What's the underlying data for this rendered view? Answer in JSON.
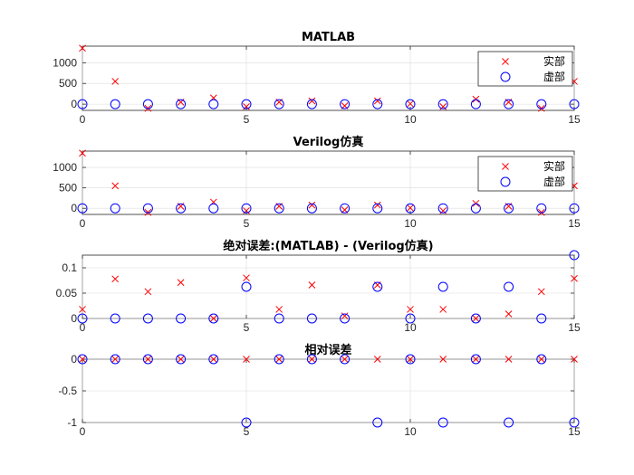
{
  "colors": {
    "real": "#ff0000",
    "imag": "#0000ff"
  },
  "chart_data": [
    {
      "type": "scatter",
      "title": "MATLAB",
      "xlim": [
        0,
        15
      ],
      "ylim": [
        -150,
        1400
      ],
      "xticks": [
        0,
        5,
        10,
        15
      ],
      "yticks": [
        0,
        500,
        1000
      ],
      "legend": [
        "实部",
        "虚部"
      ],
      "legend_location": "top-right",
      "grid": true,
      "series": [
        {
          "name": "实部",
          "marker": "x",
          "x": [
            0,
            1,
            2,
            3,
            4,
            5,
            6,
            7,
            8,
            9,
            10,
            11,
            12,
            13,
            14,
            15
          ],
          "y": [
            1350,
            550,
            -100,
            50,
            150,
            -60,
            50,
            80,
            -40,
            80,
            10,
            -60,
            120,
            50,
            -100,
            550
          ]
        },
        {
          "name": "虚部",
          "marker": "o",
          "x": [
            0,
            1,
            2,
            3,
            4,
            5,
            6,
            7,
            8,
            9,
            10,
            11,
            12,
            13,
            14,
            15
          ],
          "y": [
            0,
            0,
            0,
            0,
            0,
            0,
            0,
            0,
            0,
            0,
            0,
            0,
            0,
            0,
            0,
            0
          ]
        }
      ]
    },
    {
      "type": "scatter",
      "title": "Verilog仿真",
      "xlim": [
        0,
        15
      ],
      "ylim": [
        -150,
        1400
      ],
      "xticks": [
        0,
        5,
        10,
        15
      ],
      "yticks": [
        0,
        500,
        1000
      ],
      "legend": [
        "实部",
        "虚部"
      ],
      "legend_location": "top-right",
      "grid": true,
      "series": [
        {
          "name": "实部",
          "marker": "x",
          "x": [
            0,
            1,
            2,
            3,
            4,
            5,
            6,
            7,
            8,
            9,
            10,
            11,
            12,
            13,
            14,
            15
          ],
          "y": [
            1350,
            550,
            -100,
            50,
            150,
            -60,
            50,
            80,
            -40,
            80,
            10,
            -60,
            120,
            50,
            -100,
            550
          ]
        },
        {
          "name": "虚部",
          "marker": "o",
          "x": [
            0,
            1,
            2,
            3,
            4,
            5,
            6,
            7,
            8,
            9,
            10,
            11,
            12,
            13,
            14,
            15
          ],
          "y": [
            0,
            0,
            0,
            0,
            0,
            0,
            0,
            0,
            0,
            0,
            0,
            0,
            0,
            0,
            0,
            0
          ]
        }
      ]
    },
    {
      "type": "scatter",
      "title": "绝对误差:(MATLAB) - (Verilog仿真)",
      "xlim": [
        0,
        15
      ],
      "ylim": [
        0,
        0.125
      ],
      "xticks": [
        0,
        5,
        10,
        15
      ],
      "yticks": [
        0,
        0.05,
        0.1
      ],
      "ytick_labels": [
        "0",
        "0.05",
        "0.1"
      ],
      "grid": true,
      "series": [
        {
          "name": "实部",
          "marker": "x",
          "x": [
            0,
            1,
            2,
            3,
            4,
            5,
            6,
            7,
            8,
            9,
            10,
            11,
            12,
            13,
            14,
            15
          ],
          "y": [
            0.018,
            0.078,
            0.053,
            0.071,
            0.0,
            0.08,
            0.018,
            0.066,
            0.005,
            0.066,
            0.018,
            0.018,
            0.0,
            0.009,
            0.053,
            0.079
          ]
        },
        {
          "name": "虚部",
          "marker": "o",
          "x": [
            0,
            1,
            2,
            3,
            4,
            5,
            6,
            7,
            8,
            9,
            10,
            11,
            12,
            13,
            14,
            15
          ],
          "y": [
            0.0,
            0.0,
            0.0,
            0.0,
            0.0,
            0.0625,
            0.0,
            0.0,
            0.0,
            0.0625,
            0.0,
            0.0625,
            0.0,
            0.0625,
            0.0,
            0.125
          ]
        }
      ]
    },
    {
      "type": "scatter",
      "title": "相对误差",
      "xlim": [
        0,
        15
      ],
      "ylim": [
        -1,
        0
      ],
      "xticks": [
        0,
        5,
        10,
        15
      ],
      "yticks": [
        -1,
        -0.5,
        0
      ],
      "ytick_labels": [
        "-1",
        "-0.5",
        "0"
      ],
      "grid": true,
      "series": [
        {
          "name": "实部",
          "marker": "x",
          "x": [
            0,
            1,
            2,
            3,
            4,
            5,
            6,
            7,
            8,
            9,
            10,
            11,
            12,
            13,
            14,
            15
          ],
          "y": [
            0,
            0,
            0,
            0,
            0,
            0,
            0,
            0,
            0,
            0,
            0,
            0,
            0,
            0,
            0,
            0
          ]
        },
        {
          "name": "虚部",
          "marker": "o",
          "x": [
            0,
            1,
            2,
            3,
            4,
            5,
            6,
            7,
            8,
            9,
            10,
            11,
            12,
            13,
            14,
            15
          ],
          "y": [
            0,
            0,
            0,
            0,
            0,
            -1,
            0,
            0,
            0,
            -1,
            0,
            -1,
            0,
            -1,
            0,
            -1
          ]
        }
      ]
    }
  ]
}
